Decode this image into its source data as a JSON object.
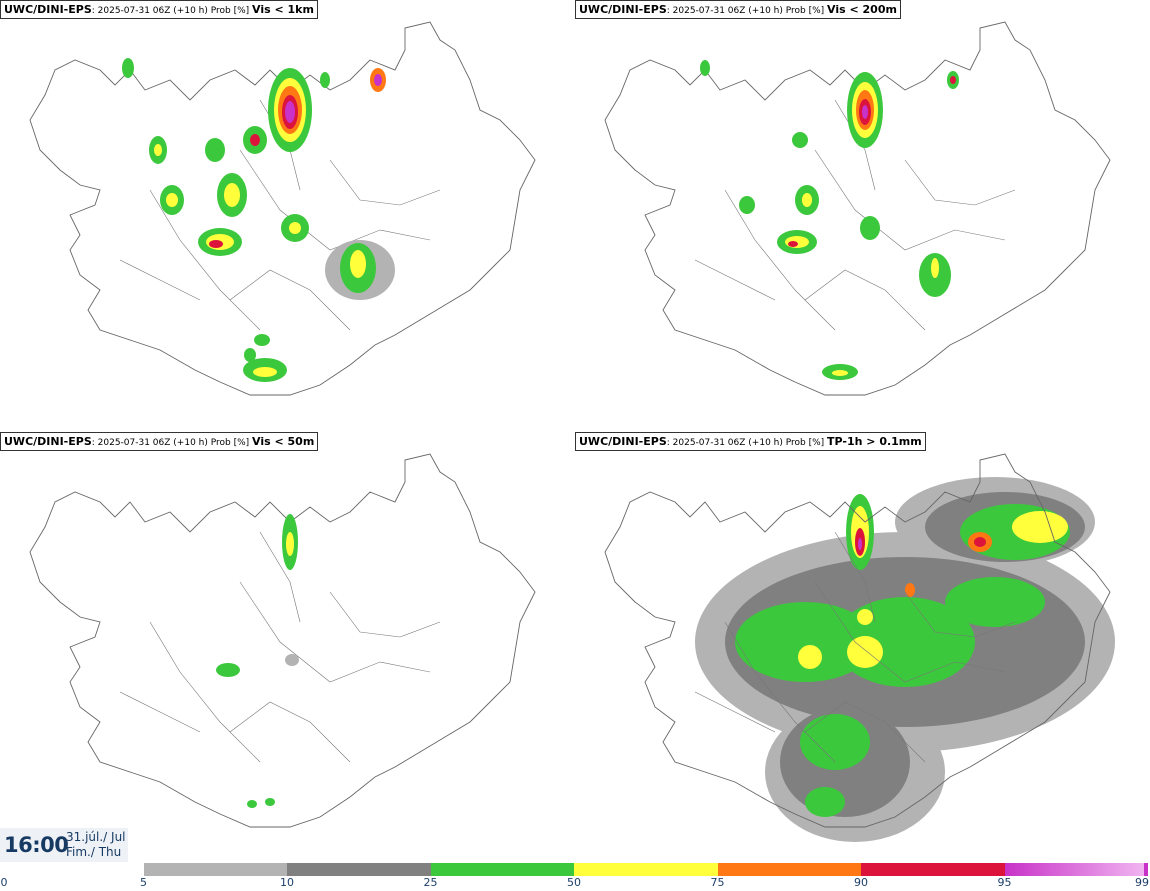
{
  "panels": [
    {
      "model": "UWC/DINI-EPS",
      "meta": ": 2025-07-31 06Z (+10 h) Prob [%] ",
      "variable": "Vis < 1km"
    },
    {
      "model": "UWC/DINI-EPS",
      "meta": ": 2025-07-31 06Z (+10 h) Prob [%] ",
      "variable": "Vis < 200m"
    },
    {
      "model": "UWC/DINI-EPS",
      "meta": ": 2025-07-31 06Z (+10 h) Prob [%] ",
      "variable": "Vis < 50m"
    },
    {
      "model": "UWC/DINI-EPS",
      "meta": ": 2025-07-31 06Z (+10 h) Prob [%] ",
      "variable": "TP-1h > 0.1mm"
    }
  ],
  "valid_time": {
    "time": "16:00",
    "date": "31.júl./ Jul",
    "day": "Fim./ Thu"
  },
  "colorbar": {
    "ticks": [
      "0",
      "5",
      "10",
      "25",
      "50",
      "75",
      "90",
      "95",
      "99"
    ],
    "colors": [
      "#ffffff",
      "#b3b3b3",
      "#808080",
      "#3cc83c",
      "#ffff3c",
      "#ff7814",
      "#dc143c",
      "#c832c8",
      "#f0b4f0"
    ]
  }
}
